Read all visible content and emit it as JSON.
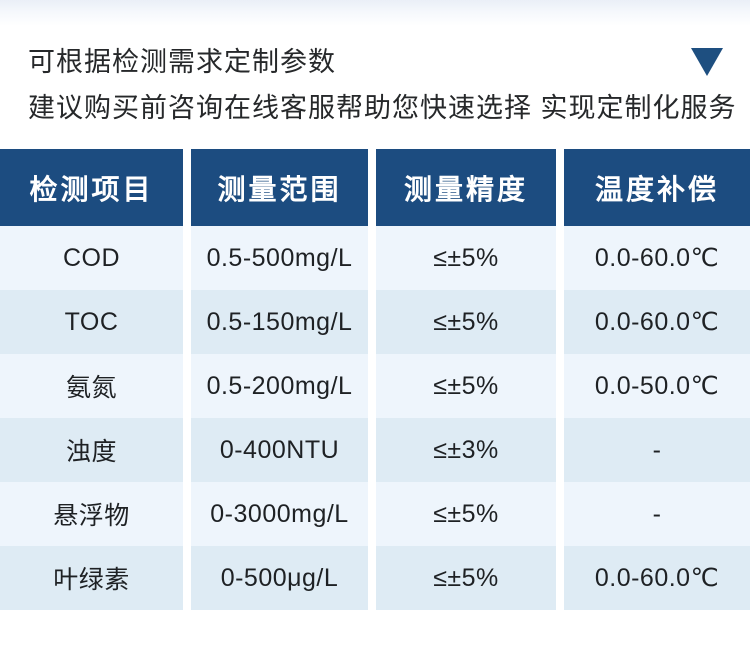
{
  "notice": {
    "line1": "可根据检测需求定制参数",
    "line2": "建议购买前咨询在线客服帮助您快速选择 实现定制化服务"
  },
  "icons": {
    "expand_triangle": "triangle-down"
  },
  "colors": {
    "header_bg": "#1C4C80",
    "row_light": "#EEF5FC",
    "row_dark": "#DEEBF4",
    "accent_triangle": "#1E4F80",
    "body_text": "#1e2124",
    "notice_text": "#26282a"
  },
  "table": {
    "headers": [
      "检测项目",
      "测量范围",
      "测量精度",
      "温度补偿"
    ],
    "rows": [
      [
        "COD",
        "0.5-500mg/L",
        "≤±5%",
        "0.0-60.0℃"
      ],
      [
        "TOC",
        "0.5-150mg/L",
        "≤±5%",
        "0.0-60.0℃"
      ],
      [
        "氨氮",
        "0.5-200mg/L",
        "≤±5%",
        "0.0-50.0℃"
      ],
      [
        "浊度",
        "0-400NTU",
        "≤±3%",
        "-"
      ],
      [
        "悬浮物",
        "0-3000mg/L",
        "≤±5%",
        "-"
      ],
      [
        "叶绿素",
        "0-500μg/L",
        "≤±5%",
        "0.0-60.0℃"
      ]
    ]
  }
}
